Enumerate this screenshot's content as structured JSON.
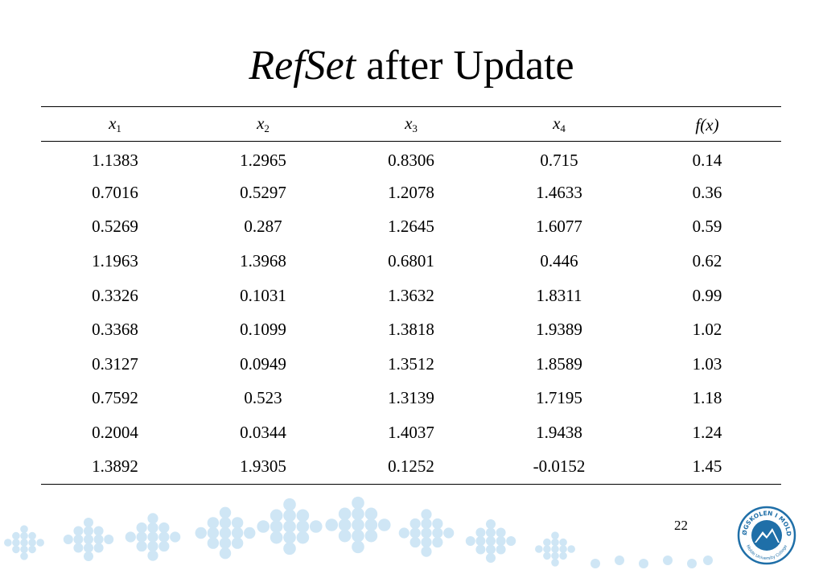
{
  "title": {
    "italic_part": "RefSet",
    "rest": " after Update"
  },
  "table": {
    "headers": [
      {
        "var": "x",
        "sub": "1"
      },
      {
        "var": "x",
        "sub": "2"
      },
      {
        "var": "x",
        "sub": "3"
      },
      {
        "var": "x",
        "sub": "4"
      },
      {
        "text": "f(x)"
      }
    ],
    "rows": [
      [
        "1.1383",
        "1.2965",
        "0.8306",
        "0.715",
        "0.14"
      ],
      [
        "0.7016",
        "0.5297",
        "1.2078",
        "1.4633",
        "0.36"
      ],
      [
        "0.5269",
        "0.287",
        "1.2645",
        "1.6077",
        "0.59"
      ],
      [
        "1.1963",
        "1.3968",
        "0.6801",
        "0.446",
        "0.62"
      ],
      [
        "0.3326",
        "0.1031",
        "1.3632",
        "1.8311",
        "0.99"
      ],
      [
        "0.3368",
        "0.1099",
        "1.3818",
        "1.9389",
        "1.02"
      ],
      [
        "0.3127",
        "0.0949",
        "1.3512",
        "1.8589",
        "1.03"
      ],
      [
        "0.7592",
        "0.523",
        "1.3139",
        "1.7195",
        "1.18"
      ],
      [
        "0.2004",
        "0.0344",
        "1.4037",
        "1.9438",
        "1.24"
      ],
      [
        "1.3892",
        "1.9305",
        "0.1252",
        "-0.0152",
        "1.45"
      ]
    ]
  },
  "page_number": "22",
  "logo": {
    "text_top": "HØGSKOLEN I MOLDE",
    "text_bottom": "Molde University College",
    "color": "#1f6fa8"
  },
  "decor_color": "#cfe6f5"
}
